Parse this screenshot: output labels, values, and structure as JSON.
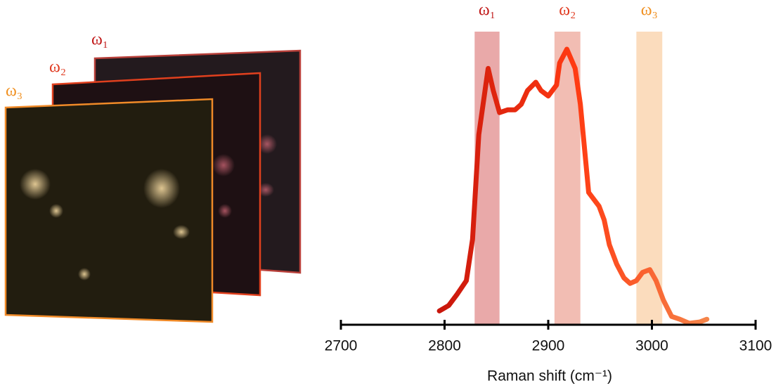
{
  "chart_data": {
    "type": "line",
    "x_label": "Raman shift (cm⁻¹)",
    "x": [
      2795,
      2804,
      2812,
      2821,
      2827,
      2833,
      2842,
      2847,
      2853,
      2861,
      2868,
      2874,
      2880,
      2888,
      2893,
      2900,
      2908,
      2911,
      2918,
      2926,
      2931,
      2939,
      2949,
      2954,
      2959,
      2966,
      2973,
      2979,
      2985,
      2991,
      2998,
      3004,
      3011,
      3019,
      3027,
      3036,
      3046,
      3053
    ],
    "series": [
      {
        "gradient": [
          "#c8160c",
          "#ff3a12",
          "#f5854a"
        ],
        "values": [
          0.05,
          0.07,
          0.11,
          0.16,
          0.31,
          0.69,
          0.93,
          0.85,
          0.77,
          0.78,
          0.78,
          0.8,
          0.85,
          0.88,
          0.85,
          0.83,
          0.87,
          0.95,
          1.0,
          0.93,
          0.8,
          0.48,
          0.43,
          0.38,
          0.29,
          0.22,
          0.17,
          0.15,
          0.16,
          0.19,
          0.2,
          0.16,
          0.09,
          0.03,
          0.02,
          0.005,
          0.01,
          0.02
        ]
      }
    ],
    "bands": [
      {
        "label": "ω₁",
        "range": [
          2829,
          2853
        ],
        "color": "#e9a9a9",
        "label_color": "#c01818"
      },
      {
        "label": "ω₂",
        "range": [
          2906,
          2931
        ],
        "color": "#f2bdb3",
        "label_color": "#e03a20"
      },
      {
        "label": "ω₃",
        "range": [
          2985,
          3010
        ],
        "color": "#fbdcbd",
        "label_color": "#f09020"
      }
    ],
    "xlim": [
      2700,
      3100
    ],
    "xticks": [
      2700,
      2800,
      2900,
      3000,
      3100
    ],
    "ylim": [
      0,
      1
    ]
  },
  "images": [
    {
      "label": "ω₁",
      "color": "#c01818"
    },
    {
      "label": "ω₂",
      "color": "#e03a20"
    },
    {
      "label": "ω₃",
      "color": "#f09020"
    }
  ]
}
